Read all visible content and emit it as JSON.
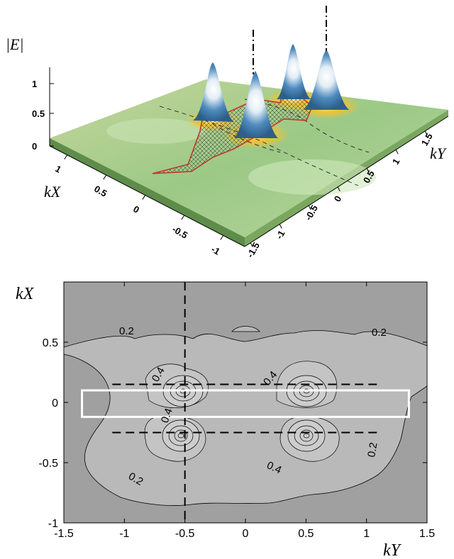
{
  "chart_data": [
    {
      "type": "surface",
      "zlabel": "|E|",
      "xlabel": "kX",
      "ylabel": "kY",
      "z_ticks": [
        "0",
        "0.5",
        "1"
      ],
      "x_ticks": [
        "1",
        "0.5",
        "0",
        "-0.5",
        "-1"
      ],
      "y_ticks": [
        "-1.5",
        "-1",
        "-0.5",
        "0",
        "0.5",
        "1",
        "1.5"
      ],
      "peaks": [
        {
          "kX": 0.1,
          "kY": -0.5,
          "value": 1.0
        },
        {
          "kX": -0.3,
          "kY": -0.5,
          "value": 1.0
        },
        {
          "kX": 0.1,
          "kY": 0.5,
          "value": 1.0
        },
        {
          "kX": -0.3,
          "kY": 0.5,
          "value": 1.0
        }
      ],
      "colors": {
        "low": "#8fc97a",
        "mid": "#f2c230",
        "high": "#2e6fa8",
        "cut": "#c0392b"
      }
    },
    {
      "type": "contour",
      "xlabel": "kY",
      "ylabel": "kX",
      "xlim": [
        -1.5,
        1.5
      ],
      "ylim": [
        -1,
        1
      ],
      "x_ticks": [
        "-1.5",
        "-1",
        "-0.5",
        "0",
        "0.5",
        "1",
        "1.5"
      ],
      "y_ticks": [
        "-1",
        "-0.5",
        "0",
        "0.5"
      ],
      "contour_labels": [
        "0.2",
        "0.2",
        "0.4",
        "0.4",
        "0.4",
        "0.2",
        "0.2",
        "0.4"
      ],
      "dashed_lines": {
        "vertical_kY": -0.5,
        "horizontal_kX": [
          0.15,
          -0.25
        ]
      },
      "highlight_box": {
        "kY": [
          -1.35,
          1.35
        ],
        "kX": [
          -0.12,
          0.1
        ]
      },
      "colors": {
        "background": "#a0a0a0",
        "inner": "#b9b9b9",
        "box": "#ffffff"
      }
    }
  ]
}
